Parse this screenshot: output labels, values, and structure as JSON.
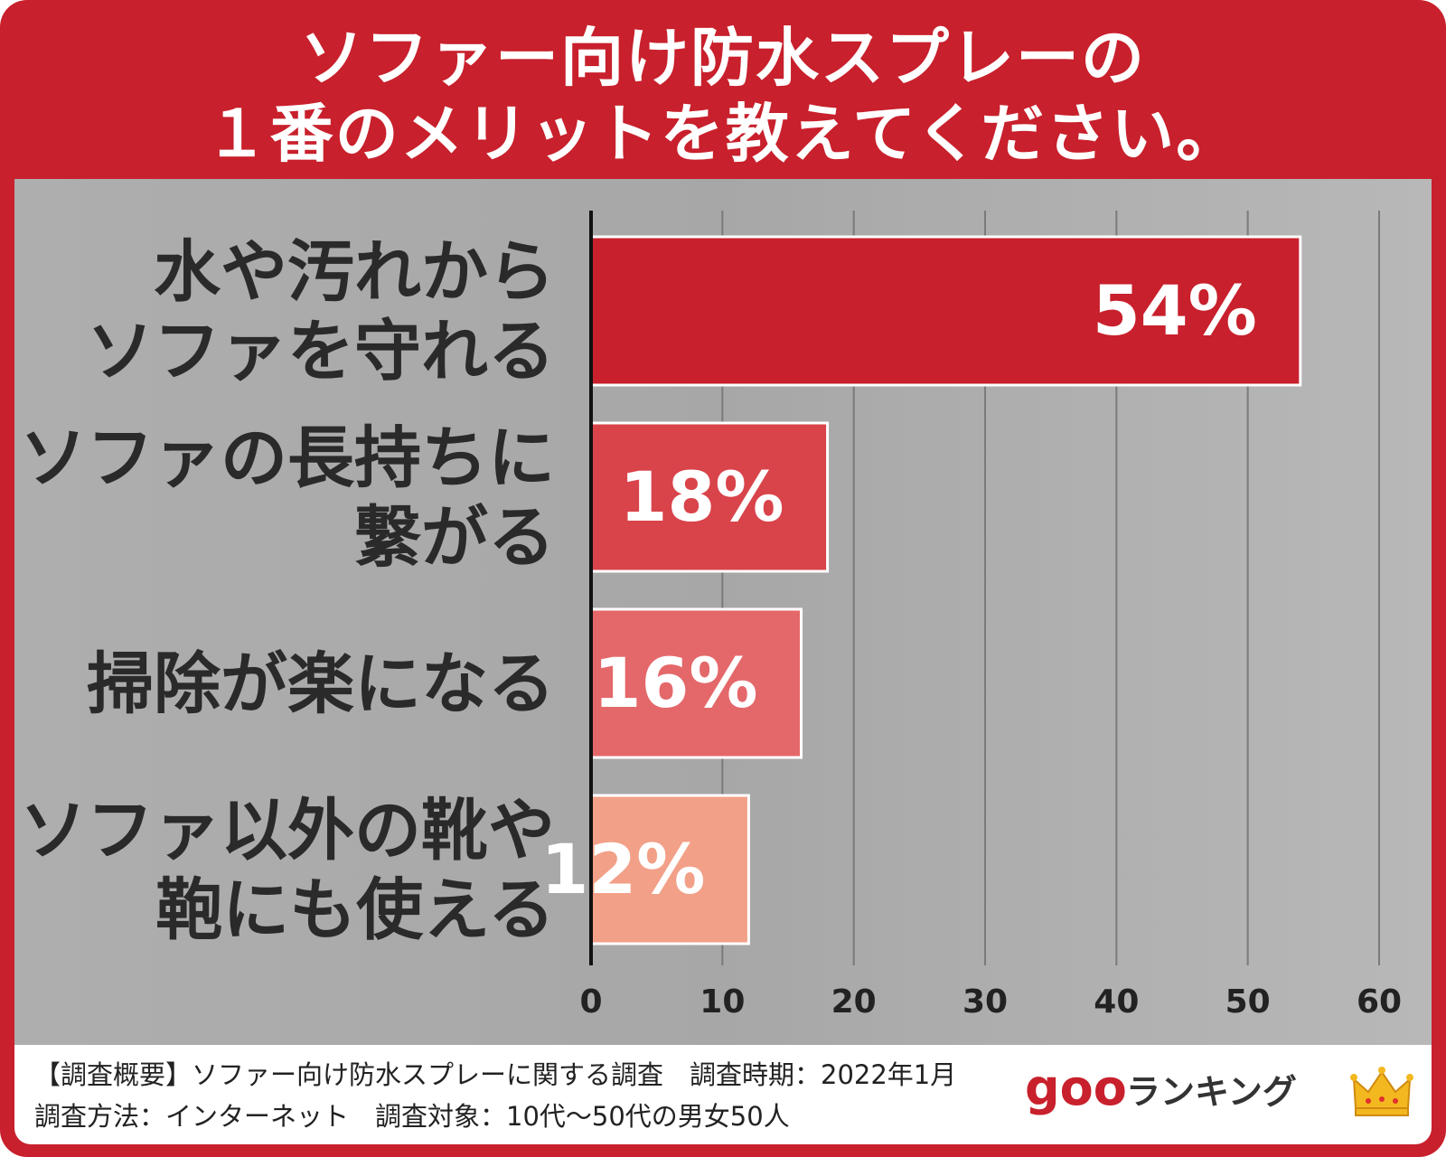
{
  "title_line1": "ソファー向け防水スプレーの",
  "title_line2": "１番のメリットを教えてください。",
  "chart_data": {
    "type": "bar",
    "orientation": "horizontal",
    "categories": [
      [
        "水や汚れから",
        "ソファを守れる"
      ],
      [
        "ソファの長持ちに",
        "繋がる"
      ],
      [
        "掃除が楽になる"
      ],
      [
        "ソファ以外の靴や",
        "鞄にも使える"
      ]
    ],
    "values": [
      54,
      18,
      16,
      12
    ],
    "value_labels": [
      "54%",
      "18%",
      "16%",
      "12%"
    ],
    "bar_colors": [
      "#c8202c",
      "#d9434a",
      "#e4686a",
      "#f2a088"
    ],
    "xlim": [
      0,
      60
    ],
    "xticks": [
      0,
      10,
      20,
      30,
      40,
      50,
      60
    ],
    "grid": true
  },
  "footer": {
    "line1": "【調査概要】ソファー向け防水スプレーに関する調査　調査時期：2022年1月",
    "line2": "調査方法：インターネット　調査対象：10代～50代の男女50人"
  },
  "logo": {
    "goo": "goo",
    "ranking": "ランキング"
  },
  "colors": {
    "frame": "#c8202c",
    "panel": "#a9a9a9"
  }
}
